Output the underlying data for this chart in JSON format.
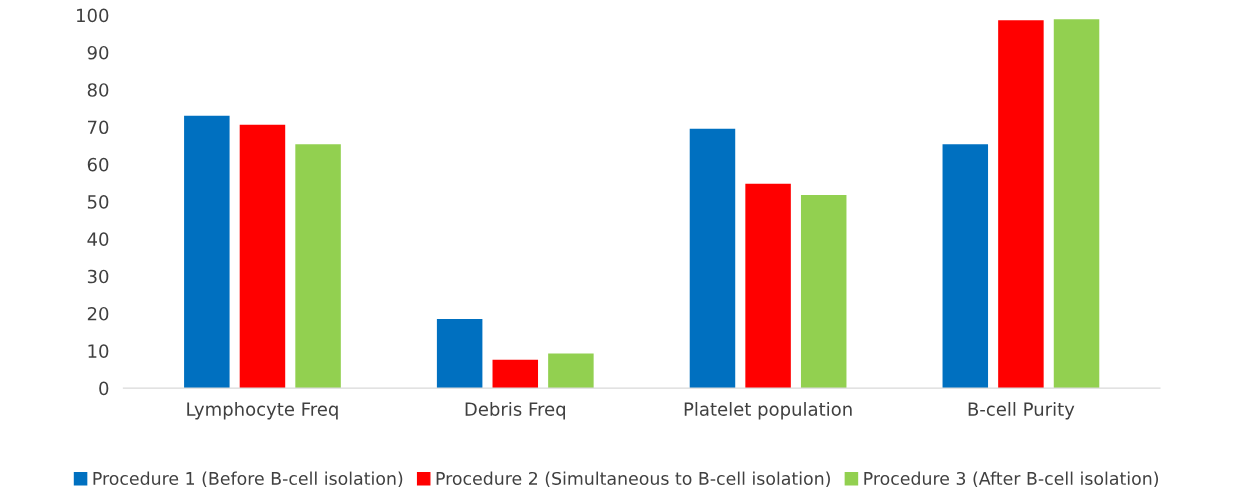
{
  "chart_data": {
    "type": "bar",
    "categories": [
      "Lymphocyte Freq",
      "Debris Freq",
      "Platelet population",
      "B-cell Purity"
    ],
    "series": [
      {
        "name": "Procedure 1 (Before B-cell isolation)",
        "color": "#0070c0",
        "values": [
          73,
          18.5,
          69.5,
          65.4
        ]
      },
      {
        "name": "Procedure 2 (Simultaneous to B-cell isolation)",
        "color": "#ff0000",
        "values": [
          70.6,
          7.6,
          54.8,
          98.6
        ]
      },
      {
        "name": "Procedure 3 (After B-cell isolation)",
        "color": "#92d050",
        "values": [
          65.4,
          9.3,
          51.8,
          98.9
        ]
      }
    ],
    "ylim": [
      0,
      100
    ],
    "yticks": [
      0,
      10,
      20,
      30,
      40,
      50,
      60,
      70,
      80,
      90,
      100
    ],
    "grid": false,
    "legend": "bottom"
  }
}
